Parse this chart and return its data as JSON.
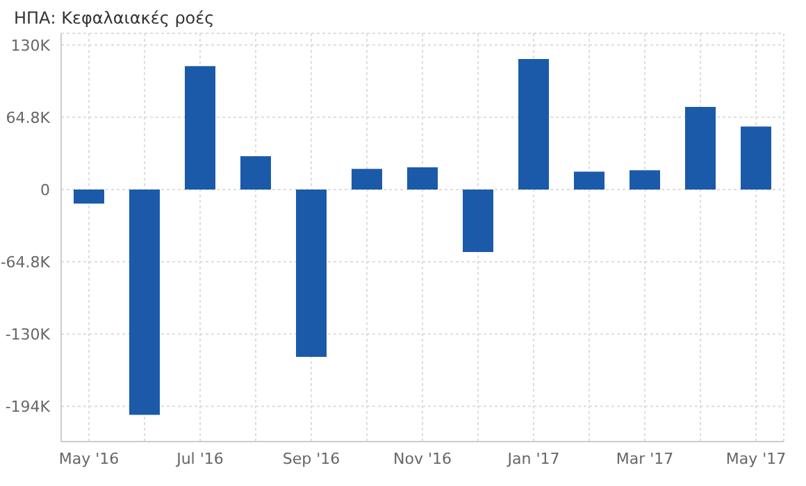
{
  "chart_data": {
    "type": "bar",
    "title": "ΗΠΑ: Κεφαλαιακές ροές",
    "categories": [
      "May '16",
      null,
      "Jul '16",
      null,
      "Sep '16",
      null,
      "Nov '16",
      null,
      "Jan '17",
      null,
      "Mar '17",
      null,
      "May '17"
    ],
    "values": [
      -12600,
      -202000,
      110600,
      29900,
      -150000,
      18500,
      19800,
      -56000,
      117000,
      16000,
      17200,
      74000,
      56400
    ],
    "color": "#1a5aa9",
    "ylim": [
      -226000,
      140000
    ],
    "yticks": [
      {
        "value": -194400,
        "label": "-194K"
      },
      {
        "value": -129600,
        "label": "-130K"
      },
      {
        "value": -64800,
        "label": "-64.8K"
      },
      0,
      {
        "value": 64800,
        "label": "64.8K"
      },
      {
        "value": 129600,
        "label": "130K"
      }
    ],
    "grid": true
  }
}
